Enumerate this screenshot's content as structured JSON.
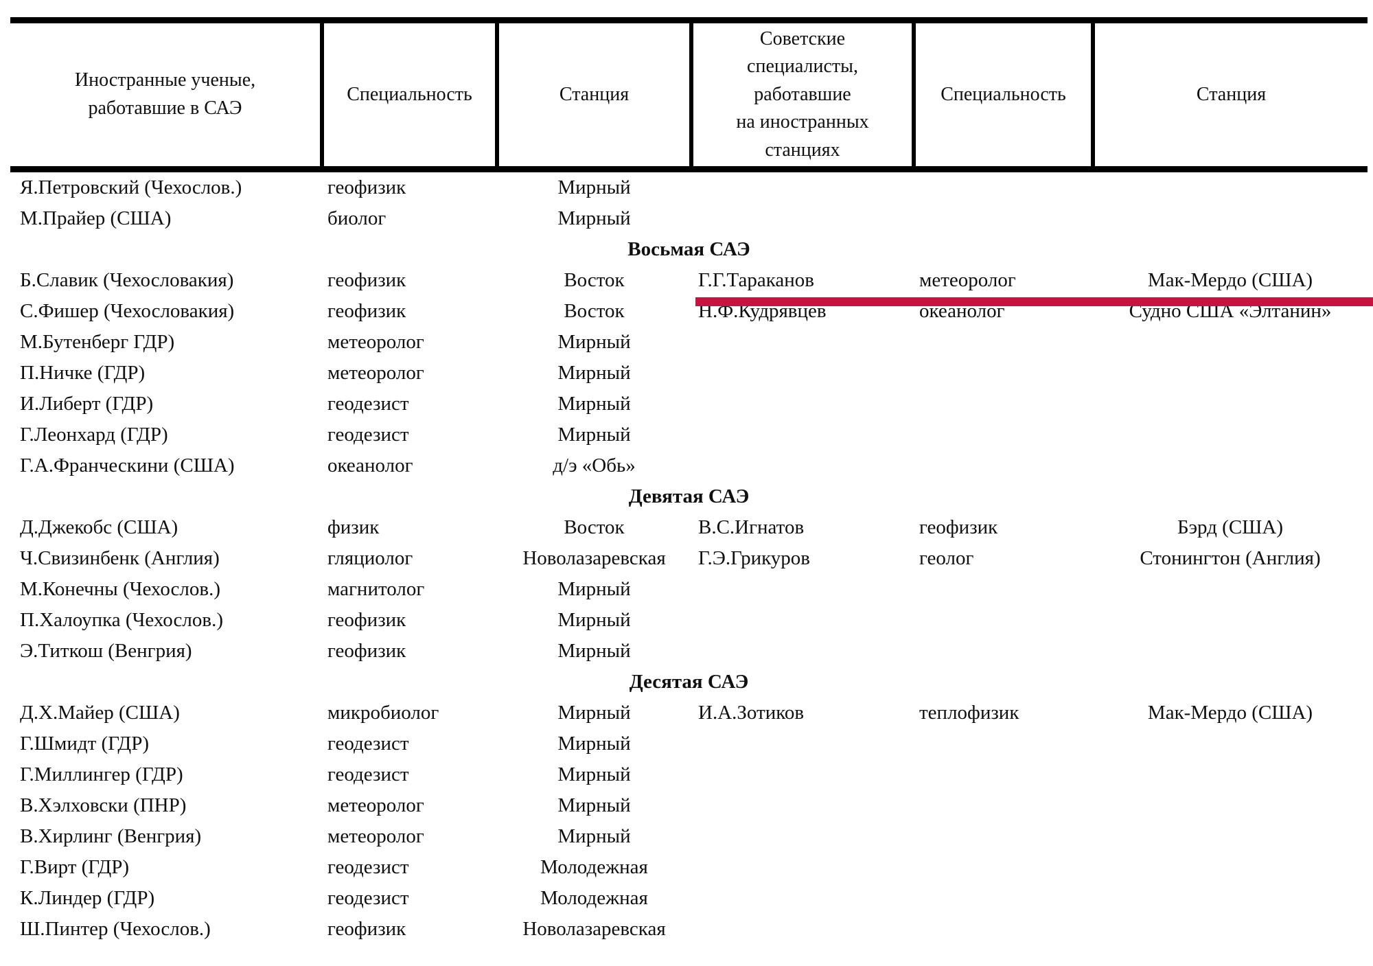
{
  "page": {
    "background": "#ffffff",
    "text_color": "#101010",
    "border_color": "#000000"
  },
  "annotation": {
    "type": "red-underline-marker",
    "color": "#c8123f",
    "marks_row": "Б.Славик (Чехословакия) / Г.Г.Тараканов"
  },
  "table": {
    "headers": [
      {
        "label": "Иностранные ученые,\nработавшие в САЭ",
        "cell_name": "foreign-scientist-cell"
      },
      {
        "label": "Специальность",
        "cell_name": "specialty-cell"
      },
      {
        "label": "Станция",
        "cell_name": "station-cell"
      },
      {
        "label": "Советские\nспециалисты,\nработавшие\nна иностранных\nстанциях",
        "cell_name": "soviet-specialist-cell"
      },
      {
        "label": "Специальность",
        "cell_name": "specialty-cell"
      },
      {
        "label": "Станция",
        "cell_name": "station-cell"
      }
    ],
    "rows": [
      {
        "type": "data",
        "cells": [
          "Я.Петровский (Чехослов.)",
          "геофизик",
          "Мирный",
          "",
          "",
          ""
        ]
      },
      {
        "type": "data",
        "cells": [
          "М.Прайер (США)",
          "биолог",
          "Мирный",
          "",
          "",
          ""
        ]
      },
      {
        "type": "section",
        "label": "Восьмая САЭ"
      },
      {
        "type": "data",
        "highlighted": true,
        "cells": [
          "Б.Славик (Чехословакия)",
          "геофизик",
          "Восток",
          "Г.Г.Тараканов",
          "метеоролог",
          "Мак-Мердо (США)"
        ]
      },
      {
        "type": "data",
        "cells": [
          "С.Фишер (Чехословакия)",
          "геофизик",
          "Восток",
          "Н.Ф.Кудрявцев",
          "океанолог",
          "Судно США «Элтанин»"
        ]
      },
      {
        "type": "data",
        "cells": [
          "М.Бутенберг ГДР)",
          "метеоролог",
          "Мирный",
          "",
          "",
          ""
        ]
      },
      {
        "type": "data",
        "cells": [
          "П.Ничке (ГДР)",
          "метеоролог",
          "Мирный",
          "",
          "",
          ""
        ]
      },
      {
        "type": "data",
        "cells": [
          "И.Либерт (ГДР)",
          "геодезист",
          "Мирный",
          "",
          "",
          ""
        ]
      },
      {
        "type": "data",
        "cells": [
          "Г.Леонхард (ГДР)",
          "геодезист",
          "Мирный",
          "",
          "",
          ""
        ]
      },
      {
        "type": "data",
        "cells": [
          "Г.А.Франческини (США)",
          "океанолог",
          "д/э «Обь»",
          "",
          "",
          ""
        ]
      },
      {
        "type": "section",
        "label": "Девятая САЭ"
      },
      {
        "type": "data",
        "cells": [
          "Д.Джекобс (США)",
          "физик",
          "Восток",
          "В.С.Игнатов",
          "геофизик",
          "Бэрд (США)"
        ]
      },
      {
        "type": "data",
        "cells": [
          "Ч.Свизинбенк (Англия)",
          "гляциолог",
          "Новолазаревская",
          "Г.Э.Грикуров",
          "геолог",
          "Стонингтон (Англия)"
        ]
      },
      {
        "type": "data",
        "cells": [
          "М.Конечны (Чехослов.)",
          "магнитолог",
          "Мирный",
          "",
          "",
          ""
        ]
      },
      {
        "type": "data",
        "cells": [
          "П.Халоупка (Чехослов.)",
          "геофизик",
          "Мирный",
          "",
          "",
          ""
        ]
      },
      {
        "type": "data",
        "cells": [
          "Э.Титкош (Венгрия)",
          "геофизик",
          "Мирный",
          "",
          "",
          ""
        ]
      },
      {
        "type": "section",
        "label": "Десятая САЭ"
      },
      {
        "type": "data",
        "cells": [
          "Д.Х.Майер (США)",
          "микробиолог",
          "Мирный",
          "И.А.Зотиков",
          "теплофизик",
          "Мак-Мердо (США)"
        ]
      },
      {
        "type": "data",
        "cells": [
          "Г.Шмидт (ГДР)",
          "геодезист",
          "Мирный",
          "",
          "",
          ""
        ]
      },
      {
        "type": "data",
        "cells": [
          "Г.Миллингер (ГДР)",
          "геодезист",
          "Мирный",
          "",
          "",
          ""
        ]
      },
      {
        "type": "data",
        "cells": [
          "В.Хэлховски (ПНР)",
          "метеоролог",
          "Мирный",
          "",
          "",
          ""
        ]
      },
      {
        "type": "data",
        "cells": [
          "В.Хирлинг (Венгрия)",
          "метеоролог",
          "Мирный",
          "",
          "",
          ""
        ]
      },
      {
        "type": "data",
        "cells": [
          "Г.Вирт (ГДР)",
          "геодезист",
          "Молодежная",
          "",
          "",
          ""
        ]
      },
      {
        "type": "data",
        "cells": [
          "К.Линдер (ГДР)",
          "геодезист",
          "Молодежная",
          "",
          "",
          ""
        ]
      },
      {
        "type": "data",
        "cells": [
          "Ш.Пинтер (Чехослов.)",
          "геофизик",
          "Новолазаревская",
          "",
          "",
          ""
        ]
      }
    ]
  }
}
